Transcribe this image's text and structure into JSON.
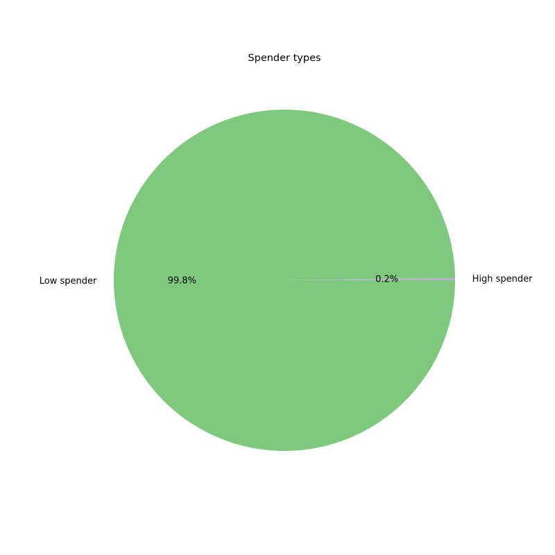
{
  "chart_data": {
    "type": "pie",
    "title": "Spender types",
    "slices": [
      {
        "label": "High spender",
        "value": 0.2,
        "pct_label": "0.2%",
        "color": "#beaed4"
      },
      {
        "label": "Low spender",
        "value": 99.8,
        "pct_label": "99.8%",
        "color": "#7fc97f"
      }
    ],
    "start_angle_deg": 0,
    "direction": "counterclockwise"
  }
}
